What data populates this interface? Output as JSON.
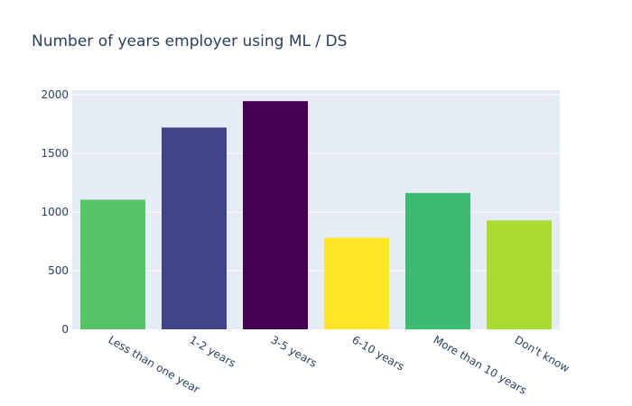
{
  "chart_data": {
    "type": "bar",
    "title": "Number of years employer using ML / DS",
    "categories": [
      "Less than one year",
      "1-2 years",
      "3-5 years",
      "6-10 years",
      "More than 10 years",
      "Don't know"
    ],
    "values": [
      1105,
      1720,
      1945,
      780,
      1162,
      928
    ],
    "colors": [
      "#55c467",
      "#414487",
      "#440154",
      "#fde725",
      "#3cbb75",
      "#aadc32"
    ],
    "ylim": [
      0,
      2000
    ],
    "yticks": [
      0,
      500,
      1000,
      1500,
      2000
    ],
    "xlabel": "",
    "ylabel": "",
    "grid": true,
    "plot_bg": "#e5ecf6"
  }
}
